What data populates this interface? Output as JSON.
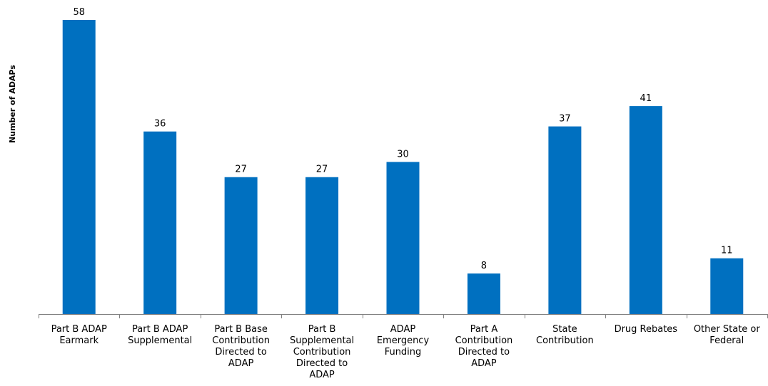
{
  "chart_data": {
    "type": "bar",
    "title": "",
    "xlabel": "",
    "ylabel": "Number of ADAPs",
    "ylim": [
      0,
      58
    ],
    "grid": false,
    "legend": "none",
    "bar_color": "#0070C0",
    "categories": [
      [
        "Part B ADAP",
        "Earmark"
      ],
      [
        "Part B ADAP",
        "Supplemental"
      ],
      [
        "Part B Base",
        "Contribution",
        "Directed to",
        "ADAP"
      ],
      [
        "Part B",
        "Supplemental",
        "Contribution",
        "Directed to",
        "ADAP"
      ],
      [
        "ADAP",
        "Emergency",
        "Funding"
      ],
      [
        "Part A",
        "Contribution",
        "Directed to",
        "ADAP"
      ],
      [
        "State",
        "Contribution"
      ],
      [
        "Drug Rebates"
      ],
      [
        "Other State or",
        "Federal"
      ]
    ],
    "values": [
      58,
      36,
      27,
      27,
      30,
      8,
      37,
      41,
      11
    ]
  }
}
